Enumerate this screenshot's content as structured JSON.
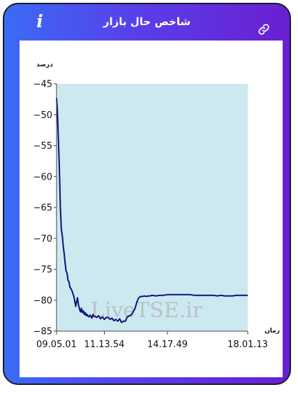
{
  "header": {
    "title": "شاخص حال بازار",
    "info_icon": "info-icon",
    "link_icon": "link-icon"
  },
  "colors": {
    "gradient_start": "#3b6bf5",
    "gradient_end": "#6a1fd0",
    "plot_fill": "#cce9f0",
    "line": "#0f0f7a"
  },
  "watermark": "LiveTSE.ir",
  "chart_data": {
    "type": "area",
    "title": "",
    "ylabel": "درصد",
    "xlabel": "زمان",
    "ylim": [
      -85,
      -45
    ],
    "yticks": [
      -45,
      -50,
      -55,
      -60,
      -65,
      -70,
      -75,
      -80,
      -85
    ],
    "x_tick_labels": [
      "09.05.01",
      "11.13.54",
      "14.17.49",
      "18.01.13"
    ],
    "x_tick_positions": [
      0,
      0.25,
      0.58,
      1
    ],
    "grid": false,
    "series": [
      {
        "x": [
          0.0,
          0.004,
          0.008,
          0.012,
          0.016,
          0.02,
          0.025,
          0.03,
          0.035,
          0.04,
          0.045,
          0.05,
          0.055,
          0.06,
          0.065,
          0.07,
          0.075,
          0.08,
          0.085,
          0.09,
          0.095,
          0.1,
          0.105,
          0.11,
          0.115,
          0.12,
          0.125,
          0.13,
          0.135,
          0.14,
          0.145,
          0.15,
          0.155,
          0.16,
          0.165,
          0.17,
          0.175,
          0.18,
          0.185,
          0.19,
          0.195,
          0.2,
          0.21,
          0.22,
          0.23,
          0.24,
          0.25,
          0.26,
          0.27,
          0.28,
          0.29,
          0.3,
          0.31,
          0.32,
          0.33,
          0.34,
          0.35,
          0.36,
          0.37,
          0.38,
          0.39,
          0.4,
          0.41,
          0.42,
          0.43,
          0.44,
          0.45,
          0.46,
          0.47,
          0.48,
          0.49,
          0.5,
          0.52,
          0.54,
          0.56,
          0.58,
          0.6,
          0.62,
          0.64,
          0.66,
          0.68,
          0.7,
          0.72,
          0.74,
          0.76,
          0.78,
          0.8,
          0.82,
          0.84,
          0.86,
          0.88,
          0.9,
          0.92,
          0.94,
          0.96,
          0.98,
          1.0
        ],
        "y": [
          -47.3,
          -49.0,
          -52.5,
          -56.0,
          -60.0,
          -65.0,
          -68.5,
          -69.5,
          -71.2,
          -72.5,
          -74.0,
          -75.3,
          -75.6,
          -76.8,
          -77.0,
          -77.9,
          -78.1,
          -78.4,
          -78.9,
          -79.3,
          -80.1,
          -81.0,
          -80.2,
          -79.6,
          -80.8,
          -81.4,
          -81.9,
          -81.3,
          -82.0,
          -81.7,
          -82.3,
          -82.0,
          -82.5,
          -82.3,
          -82.6,
          -82.7,
          -82.4,
          -82.6,
          -82.9,
          -82.3,
          -82.6,
          -82.6,
          -82.8,
          -82.5,
          -83.0,
          -82.7,
          -83.1,
          -82.8,
          -82.8,
          -83.1,
          -82.9,
          -83.3,
          -83.1,
          -83.4,
          -83.0,
          -83.6,
          -83.4,
          -83.4,
          -82.7,
          -82.5,
          -82.4,
          -81.9,
          -81.4,
          -80.3,
          -79.6,
          -79.4,
          -79.4,
          -79.3,
          -79.4,
          -79.3,
          -79.3,
          -79.2,
          -79.3,
          -79.2,
          -79.2,
          -79.1,
          -79.1,
          -79.1,
          -79.1,
          -79.1,
          -79.1,
          -79.1,
          -79.2,
          -79.2,
          -79.2,
          -79.2,
          -79.2,
          -79.2,
          -79.3,
          -79.2,
          -79.3,
          -79.3,
          -79.3,
          -79.2,
          -79.2,
          -79.2,
          -79.2
        ]
      }
    ]
  }
}
